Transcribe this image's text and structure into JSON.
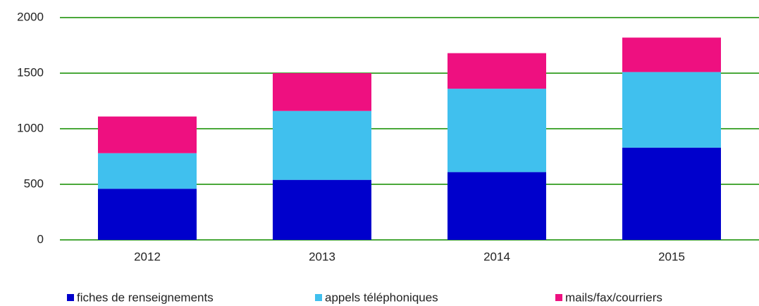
{
  "chart_data": {
    "type": "stacked_bar",
    "categories": [
      "2012",
      "2013",
      "2014",
      "2015"
    ],
    "series": [
      {
        "name": "fiches de renseignements",
        "color": "#0000cc",
        "values": [
          460,
          540,
          610,
          830
        ]
      },
      {
        "name": "appels téléphoniques",
        "color": "#40c0ee",
        "values": [
          320,
          620,
          750,
          680
        ]
      },
      {
        "name": "mails/fax/courriers",
        "color": "#ee1080",
        "values": [
          330,
          340,
          320,
          310
        ]
      }
    ],
    "ylim": [
      0,
      2000
    ],
    "yticks": [
      0,
      500,
      1000,
      1500,
      2000
    ],
    "grid": true,
    "grid_color": "#4aa83a",
    "legend": "bottom"
  }
}
